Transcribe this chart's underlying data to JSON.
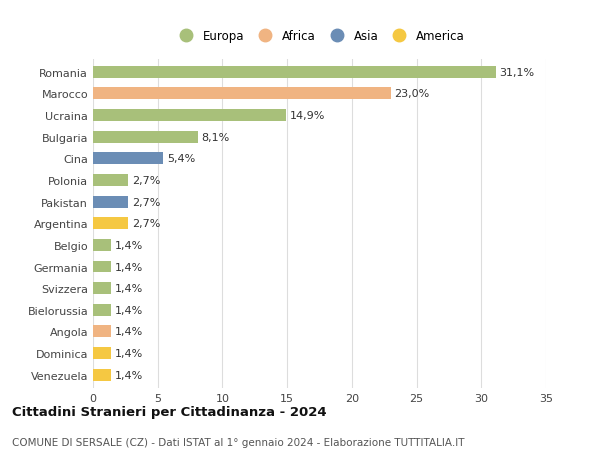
{
  "categories": [
    "Romania",
    "Marocco",
    "Ucraina",
    "Bulgaria",
    "Cina",
    "Polonia",
    "Pakistan",
    "Argentina",
    "Belgio",
    "Germania",
    "Svizzera",
    "Bielorussia",
    "Angola",
    "Dominica",
    "Venezuela"
  ],
  "values": [
    31.1,
    23.0,
    14.9,
    8.1,
    5.4,
    2.7,
    2.7,
    2.7,
    1.4,
    1.4,
    1.4,
    1.4,
    1.4,
    1.4,
    1.4
  ],
  "labels": [
    "31,1%",
    "23,0%",
    "14,9%",
    "8,1%",
    "5,4%",
    "2,7%",
    "2,7%",
    "2,7%",
    "1,4%",
    "1,4%",
    "1,4%",
    "1,4%",
    "1,4%",
    "1,4%",
    "1,4%"
  ],
  "continents": [
    "Europa",
    "Africa",
    "Europa",
    "Europa",
    "Asia",
    "Europa",
    "Asia",
    "America",
    "Europa",
    "Europa",
    "Europa",
    "Europa",
    "Africa",
    "America",
    "America"
  ],
  "colors": {
    "Europa": "#a8c07a",
    "Africa": "#f0b482",
    "Asia": "#6b8db5",
    "America": "#f5c842"
  },
  "legend_order": [
    "Europa",
    "Africa",
    "Asia",
    "America"
  ],
  "legend_colors": [
    "#a8c07a",
    "#f0b482",
    "#6b8db5",
    "#f5c842"
  ],
  "xlim": [
    0,
    35
  ],
  "xticks": [
    0,
    5,
    10,
    15,
    20,
    25,
    30,
    35
  ],
  "title": "Cittadini Stranieri per Cittadinanza - 2024",
  "subtitle": "COMUNE DI SERSALE (CZ) - Dati ISTAT al 1° gennaio 2024 - Elaborazione TUTTITALIA.IT",
  "background_color": "#ffffff",
  "grid_color": "#dddddd",
  "bar_height": 0.55,
  "label_fontsize": 8,
  "tick_fontsize": 8,
  "title_fontsize": 9.5,
  "subtitle_fontsize": 7.5
}
